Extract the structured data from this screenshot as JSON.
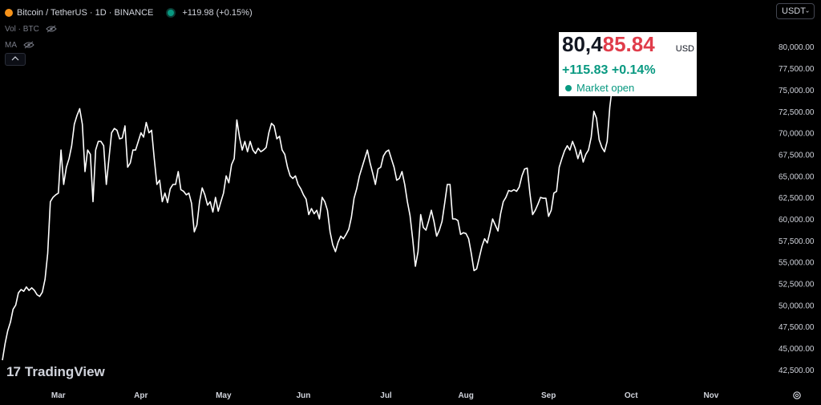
{
  "legend": {
    "symbol": "Bitcoin / TetherUS · 1D · BINANCE",
    "change": "+119.98 (+0.15%)",
    "vol_label": "Vol · BTC",
    "ma_label": "MA"
  },
  "unit_selector": {
    "label": "USDT"
  },
  "price_box": {
    "price_main": "80,4",
    "price_highlight": "85.84",
    "currency": "USD",
    "change": "+115.83  +0.14%",
    "status": "Market open"
  },
  "logo": {
    "mark": "17",
    "text": "TradingView"
  },
  "colors": {
    "background": "#000000",
    "line": "#ffffff",
    "up": "#089981",
    "highlight": "#e03c4a",
    "axis_text": "#d1d4dc"
  },
  "chart_data": {
    "type": "line",
    "series": [
      {
        "values": [
          43600,
          45500,
          47000,
          48000,
          49500,
          50000,
          51400,
          51800,
          51600,
          52100,
          51700,
          52000,
          51700,
          51200,
          51000,
          51500,
          53000,
          56000,
          62000,
          62500,
          62800,
          63000,
          68000,
          64000,
          66000,
          67000,
          68500,
          71000,
          72000,
          72800,
          71000,
          65500,
          68000,
          67500,
          62000,
          68000,
          69000,
          69000,
          68500,
          64000,
          67000,
          70000,
          70500,
          70300,
          69300,
          69400,
          70800,
          66000,
          66500,
          68000,
          68000,
          69000,
          70000,
          69500,
          71200,
          70000,
          70300,
          67000,
          64000,
          64500,
          62000,
          63000,
          61900,
          63500,
          64000,
          64000,
          65500,
          63400,
          63200,
          62800,
          63000,
          61800,
          58500,
          59300,
          62000,
          63600,
          62800,
          61600,
          62000,
          60800,
          62500,
          60900,
          62000,
          63000,
          65000,
          64200,
          66300,
          67000,
          71500,
          69500,
          68000,
          69000,
          67800,
          69000,
          68000,
          67600,
          68200,
          67800,
          68000,
          68300,
          70000,
          71100,
          70800,
          69300,
          69600,
          68000,
          67500,
          66000,
          65000,
          64700,
          65000,
          64000,
          63500,
          62800,
          62300,
          60500,
          61200,
          60600,
          61000,
          60000,
          62500,
          62000,
          61000,
          58500,
          57000,
          56200,
          57300,
          58000,
          57700,
          58200,
          58800,
          60200,
          62400,
          63500,
          65000,
          66000,
          67000,
          68000,
          66500,
          65300,
          64000,
          65800,
          66000,
          67300,
          67800,
          68000,
          67000,
          66000,
          64500,
          64700,
          65500,
          64000,
          62000,
          60400,
          57700,
          54500,
          56200,
          60500,
          59000,
          58700,
          59800,
          61000,
          59700,
          58000,
          58700,
          59700,
          61800,
          64000,
          64000,
          60000,
          60000,
          59800,
          58200,
          58400,
          58300,
          57700,
          56000,
          54000,
          54200,
          55500,
          56800,
          57700,
          57200,
          58500,
          60000,
          59300,
          58600,
          60600,
          62000,
          62500,
          63300,
          63200,
          63400,
          63200,
          63700,
          65000,
          65800,
          65900,
          63000,
          60500,
          61000,
          61700,
          62500,
          62400,
          62400,
          60300,
          61000,
          63000,
          63200,
          66000,
          67000,
          67900,
          68500,
          68000,
          69000,
          68200,
          67000,
          68000,
          66600,
          67500,
          68000,
          69500,
          72500,
          71700,
          69200,
          68300,
          67800,
          69000,
          73000,
          75500,
          76500,
          76600,
          80485.84
        ]
      }
    ],
    "x_tick_labels": [
      "Mar",
      "Apr",
      "May",
      "Jun",
      "Jul",
      "Aug",
      "Sep",
      "Oct",
      "Nov"
    ],
    "y_tick_labels": [
      "42,500.00",
      "45,000.00",
      "47,500.00",
      "50,000.00",
      "52,500.00",
      "55,000.00",
      "57,500.00",
      "60,000.00",
      "62,500.00",
      "65,000.00",
      "67,500.00",
      "70,000.00",
      "72,500.00",
      "75,000.00",
      "77,500.00",
      "80,000.00"
    ],
    "y_ticks": [
      42500,
      45000,
      47500,
      50000,
      52500,
      55000,
      57500,
      60000,
      62500,
      65000,
      67500,
      70000,
      72500,
      75000,
      77500,
      80000
    ],
    "x_ticks": [
      21,
      52,
      83,
      113,
      144,
      174,
      205,
      236,
      266
    ],
    "ylim": [
      41000,
      83000
    ],
    "xlim": [
      0,
      288
    ],
    "grid": false,
    "last_point_marker": true
  }
}
